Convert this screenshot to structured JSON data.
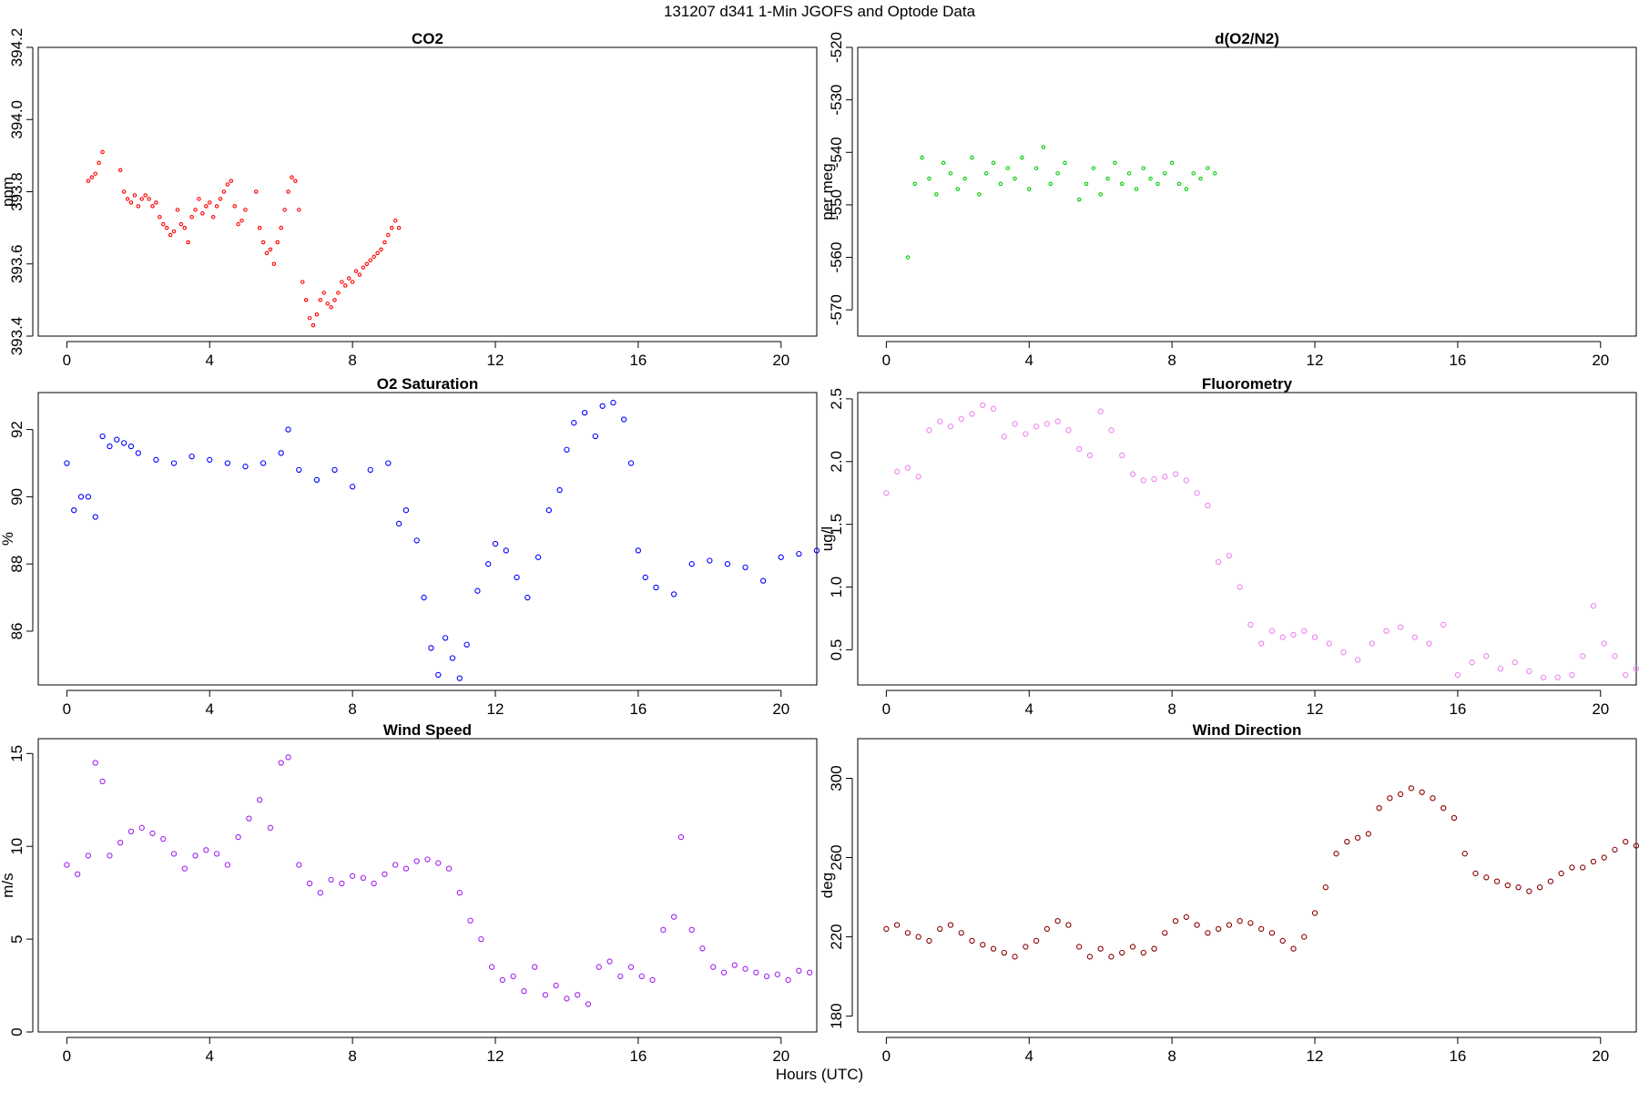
{
  "figure": {
    "title": "131207   d341   1-Min  JGOFS and Optode Data",
    "xlabel": "Hours (UTC)"
  },
  "chart_data": [
    {
      "id": "co2",
      "type": "scatter",
      "title": "CO2",
      "ylabel": "ppm",
      "xlim": [
        -0.8,
        21
      ],
      "ylim": [
        393.4,
        394.2
      ],
      "xticks": [
        0,
        4,
        8,
        12,
        16,
        20
      ],
      "yticks": [
        393.4,
        393.6,
        393.8,
        394.0,
        394.2
      ],
      "ytick_labels": [
        "393.4",
        "393.6",
        "393.8",
        "394.0",
        "394.2"
      ],
      "color": "#ff0000",
      "marker_size": 1.7,
      "x": [
        0.6,
        0.7,
        0.8,
        0.9,
        1.0,
        1.5,
        1.6,
        1.7,
        1.8,
        1.9,
        2.0,
        2.1,
        2.2,
        2.3,
        2.4,
        2.5,
        2.6,
        2.7,
        2.8,
        2.9,
        3.0,
        3.1,
        3.2,
        3.3,
        3.4,
        3.5,
        3.6,
        3.7,
        3.8,
        3.9,
        4.0,
        4.1,
        4.2,
        4.3,
        4.4,
        4.5,
        4.6,
        4.7,
        4.8,
        4.9,
        5.0,
        5.3,
        5.4,
        5.5,
        5.6,
        5.7,
        5.8,
        5.9,
        6.0,
        6.1,
        6.2,
        6.3,
        6.4,
        6.5,
        6.6,
        6.7,
        6.8,
        6.9,
        7.0,
        7.1,
        7.2,
        7.3,
        7.4,
        7.5,
        7.6,
        7.7,
        7.8,
        7.9,
        8.0,
        8.1,
        8.2,
        8.3,
        8.4,
        8.5,
        8.6,
        8.7,
        8.8,
        8.9,
        9.0,
        9.1,
        9.2,
        9.3
      ],
      "y": [
        393.83,
        393.84,
        393.85,
        393.88,
        393.91,
        393.86,
        393.8,
        393.78,
        393.77,
        393.79,
        393.76,
        393.78,
        393.79,
        393.78,
        393.76,
        393.77,
        393.73,
        393.71,
        393.7,
        393.68,
        393.69,
        393.75,
        393.71,
        393.7,
        393.66,
        393.73,
        393.75,
        393.78,
        393.74,
        393.76,
        393.77,
        393.73,
        393.76,
        393.78,
        393.8,
        393.82,
        393.83,
        393.76,
        393.71,
        393.72,
        393.75,
        393.8,
        393.7,
        393.66,
        393.63,
        393.64,
        393.6,
        393.66,
        393.7,
        393.75,
        393.8,
        393.84,
        393.83,
        393.75,
        393.55,
        393.5,
        393.45,
        393.43,
        393.46,
        393.5,
        393.52,
        393.49,
        393.48,
        393.5,
        393.52,
        393.55,
        393.54,
        393.56,
        393.55,
        393.58,
        393.57,
        393.59,
        393.6,
        393.61,
        393.62,
        393.63,
        393.64,
        393.66,
        393.68,
        393.7,
        393.72,
        393.7
      ]
    },
    {
      "id": "do2n2",
      "type": "scatter",
      "title": "d(O2/N2)",
      "ylabel": "per meg",
      "xlim": [
        -0.8,
        21
      ],
      "ylim": [
        -575,
        -520
      ],
      "xticks": [
        0,
        4,
        8,
        12,
        16,
        20
      ],
      "yticks": [
        -570,
        -560,
        -550,
        -540,
        -530,
        -520
      ],
      "ytick_labels": [
        "-570",
        "-560",
        "-550",
        "-540",
        "-530",
        "-520"
      ],
      "color": "#00cc00",
      "marker_size": 1.7,
      "x": [
        0.6,
        0.8,
        1.0,
        1.2,
        1.4,
        1.6,
        1.8,
        2.0,
        2.2,
        2.4,
        2.6,
        2.8,
        3.0,
        3.2,
        3.4,
        3.6,
        3.8,
        4.0,
        4.2,
        4.4,
        4.6,
        4.8,
        5.0,
        5.4,
        5.6,
        5.8,
        6.0,
        6.2,
        6.4,
        6.6,
        6.8,
        7.0,
        7.2,
        7.4,
        7.6,
        7.8,
        8.0,
        8.2,
        8.4,
        8.6,
        8.8,
        9.0,
        9.2
      ],
      "y": [
        -560,
        -546,
        -541,
        -545,
        -548,
        -542,
        -544,
        -547,
        -545,
        -541,
        -548,
        -544,
        -542,
        -546,
        -543,
        -545,
        -541,
        -547,
        -543,
        -539,
        -546,
        -544,
        -542,
        -549,
        -546,
        -543,
        -548,
        -545,
        -542,
        -546,
        -544,
        -547,
        -543,
        -545,
        -546,
        -544,
        -542,
        -546,
        -547,
        -544,
        -545,
        -543,
        -544
      ]
    },
    {
      "id": "o2sat",
      "type": "scatter",
      "title": "O2 Saturation",
      "ylabel": "%",
      "xlim": [
        -0.8,
        21
      ],
      "ylim": [
        84.4,
        93.1
      ],
      "xticks": [
        0,
        4,
        8,
        12,
        16,
        20
      ],
      "yticks": [
        86,
        88,
        90,
        92
      ],
      "ytick_labels": [
        "86",
        "88",
        "90",
        "92"
      ],
      "color": "#0000ff",
      "marker_size": 2.6,
      "x": [
        0,
        0.2,
        0.4,
        0.6,
        0.8,
        1.0,
        1.2,
        1.4,
        1.6,
        1.8,
        2.0,
        2.5,
        3.0,
        3.5,
        4.0,
        4.5,
        5.0,
        5.5,
        6.0,
        6.2,
        6.5,
        7.0,
        7.5,
        8.0,
        8.5,
        9.0,
        9.3,
        9.5,
        9.8,
        10.0,
        10.2,
        10.4,
        10.6,
        10.8,
        11.0,
        11.2,
        11.5,
        11.8,
        12.0,
        12.3,
        12.6,
        12.9,
        13.2,
        13.5,
        13.8,
        14.0,
        14.2,
        14.5,
        14.8,
        15.0,
        15.3,
        15.6,
        15.8,
        16.0,
        16.2,
        16.5,
        17.0,
        17.5,
        18.0,
        18.5,
        19.0,
        19.5,
        20.0,
        20.5,
        21.0
      ],
      "y": [
        91.0,
        89.6,
        90.0,
        90.0,
        89.4,
        91.8,
        91.5,
        91.7,
        91.6,
        91.5,
        91.3,
        91.1,
        91.0,
        91.2,
        91.1,
        91.0,
        90.9,
        91.0,
        91.3,
        92.0,
        90.8,
        90.5,
        90.8,
        90.3,
        90.8,
        91.0,
        89.2,
        89.6,
        88.7,
        87.0,
        85.5,
        84.7,
        85.8,
        85.2,
        84.6,
        85.6,
        87.2,
        88.0,
        88.6,
        88.4,
        87.6,
        87.0,
        88.2,
        89.6,
        90.2,
        91.4,
        92.2,
        92.5,
        91.8,
        92.7,
        92.8,
        92.3,
        91.0,
        88.4,
        87.6,
        87.3,
        87.1,
        88.0,
        88.1,
        88.0,
        87.9,
        87.5,
        88.2,
        88.3,
        88.4
      ]
    },
    {
      "id": "fluor",
      "type": "scatter",
      "title": "Fluorometry",
      "ylabel": "ug/l",
      "xlim": [
        -0.8,
        21
      ],
      "ylim": [
        0.22,
        2.55
      ],
      "xticks": [
        0,
        4,
        8,
        12,
        16,
        20
      ],
      "yticks": [
        0.5,
        1.0,
        1.5,
        2.0,
        2.5
      ],
      "ytick_labels": [
        "0.5",
        "1.0",
        "1.5",
        "2.0",
        "2.5"
      ],
      "color": "#ee82ee",
      "marker_size": 2.6,
      "x": [
        0,
        0.3,
        0.6,
        0.9,
        1.2,
        1.5,
        1.8,
        2.1,
        2.4,
        2.7,
        3.0,
        3.3,
        3.6,
        3.9,
        4.2,
        4.5,
        4.8,
        5.1,
        5.4,
        5.7,
        6.0,
        6.3,
        6.6,
        6.9,
        7.2,
        7.5,
        7.8,
        8.1,
        8.4,
        8.7,
        9.0,
        9.3,
        9.6,
        9.9,
        10.2,
        10.5,
        10.8,
        11.1,
        11.4,
        11.7,
        12.0,
        12.4,
        12.8,
        13.2,
        13.6,
        14.0,
        14.4,
        14.8,
        15.2,
        15.6,
        16.0,
        16.4,
        16.8,
        17.2,
        17.6,
        18.0,
        18.4,
        18.8,
        19.2,
        19.5,
        19.8,
        20.1,
        20.4,
        20.7,
        21.0
      ],
      "y": [
        1.75,
        1.92,
        1.95,
        1.88,
        2.25,
        2.32,
        2.28,
        2.34,
        2.38,
        2.45,
        2.42,
        2.2,
        2.3,
        2.22,
        2.28,
        2.3,
        2.32,
        2.25,
        2.1,
        2.05,
        2.4,
        2.25,
        2.05,
        1.9,
        1.85,
        1.86,
        1.88,
        1.9,
        1.85,
        1.75,
        1.65,
        1.2,
        1.25,
        1.0,
        0.7,
        0.55,
        0.65,
        0.6,
        0.62,
        0.65,
        0.6,
        0.55,
        0.48,
        0.42,
        0.55,
        0.65,
        0.68,
        0.6,
        0.55,
        0.7,
        0.3,
        0.4,
        0.45,
        0.35,
        0.4,
        0.33,
        0.28,
        0.28,
        0.3,
        0.45,
        0.85,
        0.55,
        0.45,
        0.3,
        0.35
      ]
    },
    {
      "id": "wspd",
      "type": "scatter",
      "title": "Wind Speed",
      "ylabel": "m/s",
      "xlim": [
        -0.8,
        21
      ],
      "ylim": [
        0,
        15.8
      ],
      "xticks": [
        0,
        4,
        8,
        12,
        16,
        20
      ],
      "yticks": [
        0,
        5,
        10,
        15
      ],
      "ytick_labels": [
        "0",
        "5",
        "10",
        "15"
      ],
      "color": "#a020f0",
      "marker_size": 2.6,
      "x": [
        0,
        0.3,
        0.6,
        0.8,
        1.0,
        1.2,
        1.5,
        1.8,
        2.1,
        2.4,
        2.7,
        3.0,
        3.3,
        3.6,
        3.9,
        4.2,
        4.5,
        4.8,
        5.1,
        5.4,
        5.7,
        6.0,
        6.2,
        6.5,
        6.8,
        7.1,
        7.4,
        7.7,
        8.0,
        8.3,
        8.6,
        8.9,
        9.2,
        9.5,
        9.8,
        10.1,
        10.4,
        10.7,
        11.0,
        11.3,
        11.6,
        11.9,
        12.2,
        12.5,
        12.8,
        13.1,
        13.4,
        13.7,
        14.0,
        14.3,
        14.6,
        14.9,
        15.2,
        15.5,
        15.8,
        16.1,
        16.4,
        16.7,
        17.0,
        17.2,
        17.5,
        17.8,
        18.1,
        18.4,
        18.7,
        19.0,
        19.3,
        19.6,
        19.9,
        20.2,
        20.5,
        20.8
      ],
      "y": [
        9.0,
        8.5,
        9.5,
        14.5,
        13.5,
        9.5,
        10.2,
        10.8,
        11.0,
        10.7,
        10.4,
        9.6,
        8.8,
        9.5,
        9.8,
        9.6,
        9.0,
        10.5,
        11.5,
        12.5,
        11.0,
        14.5,
        14.8,
        9.0,
        8.0,
        7.5,
        8.2,
        8.0,
        8.4,
        8.3,
        8.0,
        8.5,
        9.0,
        8.8,
        9.2,
        9.3,
        9.1,
        8.8,
        7.5,
        6.0,
        5.0,
        3.5,
        2.8,
        3.0,
        2.2,
        3.5,
        2.0,
        2.5,
        1.8,
        2.0,
        1.5,
        3.5,
        3.8,
        3.0,
        3.5,
        3.0,
        2.8,
        5.5,
        6.2,
        10.5,
        5.5,
        4.5,
        3.5,
        3.2,
        3.6,
        3.4,
        3.2,
        3.0,
        3.1,
        2.8,
        3.3,
        3.2
      ]
    },
    {
      "id": "wdir",
      "type": "scatter",
      "title": "Wind Direction",
      "ylabel": "deg",
      "xlim": [
        -0.8,
        21
      ],
      "ylim": [
        172,
        320
      ],
      "xticks": [
        0,
        4,
        8,
        12,
        16,
        20
      ],
      "yticks": [
        180,
        220,
        260,
        300
      ],
      "ytick_labels": [
        "180",
        "220",
        "260",
        "300"
      ],
      "color": "#8b0000",
      "marker_size": 2.6,
      "x": [
        0,
        0.3,
        0.6,
        0.9,
        1.2,
        1.5,
        1.8,
        2.1,
        2.4,
        2.7,
        3.0,
        3.3,
        3.6,
        3.9,
        4.2,
        4.5,
        4.8,
        5.1,
        5.4,
        5.7,
        6.0,
        6.3,
        6.6,
        6.9,
        7.2,
        7.5,
        7.8,
        8.1,
        8.4,
        8.7,
        9.0,
        9.3,
        9.6,
        9.9,
        10.2,
        10.5,
        10.8,
        11.1,
        11.4,
        11.7,
        12.0,
        12.3,
        12.6,
        12.9,
        13.2,
        13.5,
        13.8,
        14.1,
        14.4,
        14.7,
        15.0,
        15.3,
        15.6,
        15.9,
        16.2,
        16.5,
        16.8,
        17.1,
        17.4,
        17.7,
        18.0,
        18.3,
        18.6,
        18.9,
        19.2,
        19.5,
        19.8,
        20.1,
        20.4,
        20.7,
        21.0
      ],
      "y": [
        224,
        226,
        222,
        220,
        218,
        224,
        226,
        222,
        218,
        216,
        214,
        212,
        210,
        215,
        218,
        224,
        228,
        226,
        215,
        210,
        214,
        210,
        212,
        215,
        212,
        214,
        222,
        228,
        230,
        226,
        222,
        224,
        226,
        228,
        227,
        224,
        222,
        218,
        214,
        220,
        232,
        245,
        262,
        268,
        270,
        272,
        285,
        290,
        292,
        295,
        293,
        290,
        285,
        280,
        262,
        252,
        250,
        248,
        246,
        245,
        243,
        245,
        248,
        252,
        255,
        255,
        258,
        260,
        264,
        268,
        266
      ]
    }
  ]
}
